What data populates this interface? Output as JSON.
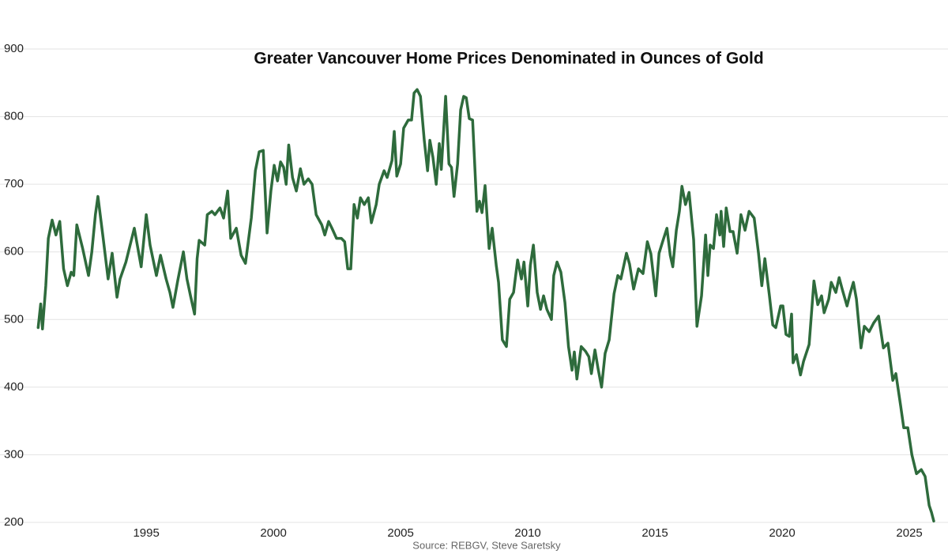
{
  "chart_data": {
    "type": "line",
    "title": "Greater Vancouver Home Prices Denominated in Ounces of Gold",
    "source": "Source: REBGV, Steve Saretsky",
    "color": "#2e6b3c",
    "grid": true,
    "xlim": [
      1989.25,
      2026.52
    ],
    "ylim": [
      200,
      900
    ],
    "xticks": [
      1995,
      2000,
      2005,
      2010,
      2015,
      2020,
      2025
    ],
    "yticks": [
      200,
      300,
      400,
      500,
      600,
      700,
      800,
      900
    ],
    "x": [
      1990.75,
      1990.85,
      1990.92,
      1991.05,
      1991.15,
      1991.3,
      1991.45,
      1991.6,
      1991.75,
      1991.9,
      1992.05,
      1992.15,
      1992.27,
      1992.5,
      1992.73,
      1992.86,
      1993.0,
      1993.1,
      1993.3,
      1993.5,
      1993.66,
      1993.85,
      1993.97,
      1994.2,
      1994.53,
      1994.8,
      1995.0,
      1995.15,
      1995.4,
      1995.56,
      1995.78,
      1995.93,
      1996.05,
      1996.24,
      1996.46,
      1996.6,
      1996.74,
      1996.9,
      1997.0,
      1997.08,
      1997.3,
      1997.4,
      1997.58,
      1997.7,
      1997.9,
      1998.04,
      1998.2,
      1998.32,
      1998.54,
      1998.73,
      1998.9,
      1999.13,
      1999.29,
      1999.44,
      1999.6,
      1999.75,
      1999.9,
      2000.03,
      2000.16,
      2000.28,
      2000.4,
      2000.5,
      2000.6,
      2000.75,
      2000.9,
      2001.06,
      2001.2,
      2001.37,
      2001.52,
      2001.68,
      2001.9,
      2002.02,
      2002.17,
      2002.3,
      2002.48,
      2002.67,
      2002.8,
      2002.92,
      2003.04,
      2003.17,
      2003.3,
      2003.42,
      2003.57,
      2003.73,
      2003.85,
      2004.04,
      2004.16,
      2004.35,
      2004.47,
      2004.66,
      2004.75,
      2004.85,
      2005.0,
      2005.12,
      2005.3,
      2005.43,
      2005.53,
      2005.65,
      2005.78,
      2005.93,
      2006.06,
      2006.15,
      2006.27,
      2006.4,
      2006.52,
      2006.6,
      2006.77,
      2006.9,
      2007.0,
      2007.1,
      2007.24,
      2007.36,
      2007.48,
      2007.58,
      2007.7,
      2007.83,
      2007.9,
      2008.0,
      2008.1,
      2008.2,
      2008.32,
      2008.48,
      2008.6,
      2008.76,
      2008.85,
      2009.0,
      2009.16,
      2009.29,
      2009.44,
      2009.6,
      2009.75,
      2009.85,
      2010.0,
      2010.1,
      2010.22,
      2010.37,
      2010.5,
      2010.62,
      2010.75,
      2010.93,
      2011.02,
      2011.15,
      2011.3,
      2011.46,
      2011.6,
      2011.74,
      2011.83,
      2011.93,
      2012.1,
      2012.27,
      2012.4,
      2012.5,
      2012.64,
      2012.76,
      2012.9,
      2013.04,
      2013.2,
      2013.39,
      2013.54,
      2013.66,
      2013.88,
      2014.0,
      2014.16,
      2014.35,
      2014.53,
      2014.7,
      2014.84,
      2015.03,
      2015.16,
      2015.3,
      2015.47,
      2015.6,
      2015.7,
      2015.84,
      2015.96,
      2016.06,
      2016.2,
      2016.34,
      2016.52,
      2016.65,
      2016.83,
      2016.99,
      2017.08,
      2017.17,
      2017.3,
      2017.42,
      2017.55,
      2017.6,
      2017.7,
      2017.8,
      2017.95,
      2018.07,
      2018.23,
      2018.38,
      2018.54,
      2018.7,
      2018.9,
      2019.07,
      2019.2,
      2019.32,
      2019.5,
      2019.63,
      2019.75,
      2019.94,
      2020.03,
      2020.15,
      2020.28,
      2020.37,
      2020.43,
      2020.56,
      2020.72,
      2020.84,
      2021.06,
      2021.25,
      2021.4,
      2021.55,
      2021.65,
      2021.83,
      2021.93,
      2022.11,
      2022.24,
      2022.36,
      2022.55,
      2022.67,
      2022.8,
      2022.92,
      2023.1,
      2023.23,
      2023.42,
      2023.6,
      2023.79,
      2023.98,
      2024.16,
      2024.35,
      2024.47,
      2024.66,
      2024.78,
      2024.94,
      2025.1,
      2025.28,
      2025.47,
      2025.62,
      2025.78,
      2025.87,
      2025.96
    ],
    "values": [
      488,
      523,
      486,
      550,
      620,
      647,
      625,
      645,
      575,
      550,
      570,
      565,
      640,
      605,
      565,
      600,
      655,
      682,
      622,
      560,
      598,
      533,
      560,
      585,
      635,
      578,
      655,
      610,
      565,
      595,
      560,
      540,
      518,
      558,
      600,
      560,
      535,
      508,
      590,
      617,
      610,
      655,
      660,
      655,
      665,
      650,
      690,
      620,
      635,
      595,
      583,
      650,
      720,
      748,
      750,
      628,
      690,
      728,
      705,
      733,
      725,
      700,
      758,
      710,
      690,
      723,
      700,
      708,
      700,
      655,
      640,
      625,
      645,
      635,
      620,
      620,
      615,
      575,
      575,
      670,
      650,
      680,
      670,
      680,
      643,
      670,
      700,
      720,
      710,
      735,
      778,
      712,
      730,
      783,
      795,
      795,
      835,
      840,
      830,
      765,
      720,
      765,
      740,
      700,
      760,
      722,
      830,
      730,
      725,
      682,
      730,
      810,
      830,
      828,
      797,
      795,
      740,
      660,
      675,
      658,
      698,
      605,
      635,
      580,
      555,
      470,
      460,
      530,
      540,
      588,
      560,
      585,
      520,
      580,
      610,
      540,
      515,
      535,
      515,
      500,
      565,
      585,
      570,
      525,
      460,
      425,
      452,
      412,
      460,
      453,
      445,
      420,
      455,
      428,
      400,
      450,
      470,
      538,
      565,
      560,
      598,
      582,
      545,
      575,
      568,
      615,
      597,
      535,
      598,
      615,
      635,
      595,
      578,
      632,
      660,
      697,
      670,
      688,
      618,
      490,
      535,
      625,
      565,
      610,
      605,
      655,
      625,
      660,
      608,
      665,
      630,
      630,
      598,
      655,
      632,
      660,
      650,
      598,
      550,
      590,
      535,
      492,
      488,
      520,
      520,
      478,
      475,
      508,
      436,
      448,
      418,
      438,
      463,
      557,
      522,
      535,
      510,
      530,
      555,
      540,
      562,
      545,
      520,
      538,
      555,
      530,
      458,
      490,
      482,
      495,
      505,
      458,
      465,
      410,
      420,
      372,
      340,
      340,
      300,
      272,
      278,
      268,
      225,
      215,
      202
    ]
  }
}
